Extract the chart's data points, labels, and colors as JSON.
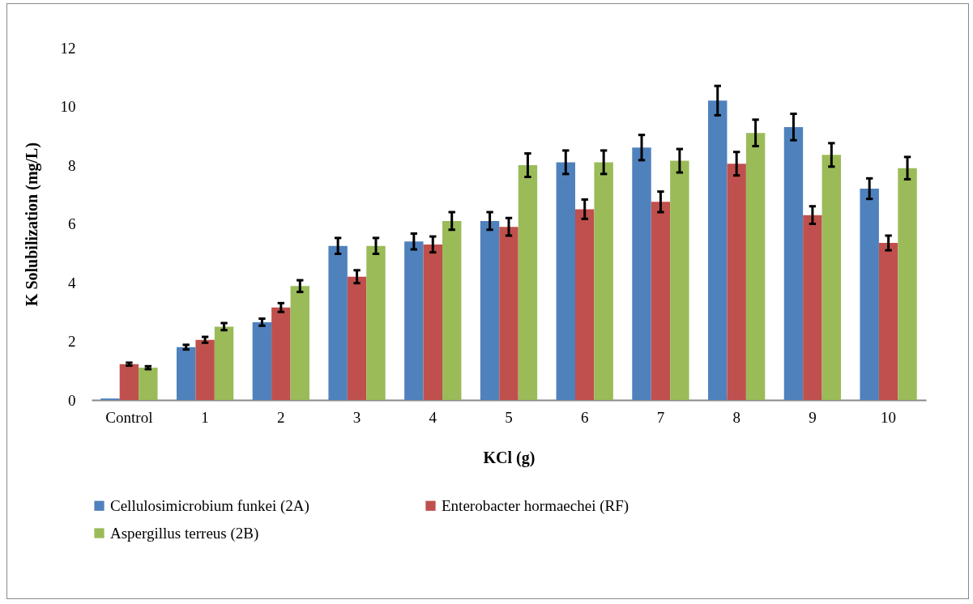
{
  "chart_data": {
    "type": "bar",
    "xlabel": "KCl (g)",
    "ylabel": "K  Solubilization (mg/L)",
    "categories": [
      "Control",
      "1",
      "2",
      "3",
      "4",
      "5",
      "6",
      "7",
      "8",
      "9",
      "10"
    ],
    "ylim": [
      0,
      12
    ],
    "yticks": [
      0,
      2,
      4,
      6,
      8,
      10,
      12
    ],
    "grid": false,
    "legend": "bottom",
    "series": [
      {
        "name": "Cellulosimicrobium funkei (2A)",
        "color": "#4f81bd",
        "values": [
          0.05,
          1.8,
          2.65,
          5.25,
          5.4,
          6.1,
          8.1,
          8.6,
          10.2,
          9.3,
          7.2
        ],
        "errors": [
          null,
          0.08,
          0.12,
          0.27,
          0.27,
          0.3,
          0.4,
          0.43,
          0.5,
          0.45,
          0.35
        ]
      },
      {
        "name": "Enterobacter hormaechei (RF)",
        "color": "#c0504d",
        "values": [
          1.22,
          2.05,
          3.15,
          4.2,
          5.3,
          5.9,
          6.5,
          6.75,
          8.05,
          6.3,
          5.35
        ],
        "errors": [
          0.05,
          0.1,
          0.15,
          0.22,
          0.27,
          0.3,
          0.33,
          0.35,
          0.4,
          0.3,
          0.25
        ]
      },
      {
        "name": "Aspergillus terreus (2B)",
        "color": "#9bbb59",
        "values": [
          1.1,
          2.5,
          3.88,
          5.25,
          6.1,
          8.0,
          8.1,
          8.15,
          9.1,
          8.35,
          7.9
        ],
        "errors": [
          0.05,
          0.12,
          0.2,
          0.27,
          0.3,
          0.4,
          0.4,
          0.4,
          0.45,
          0.4,
          0.38
        ]
      }
    ]
  }
}
